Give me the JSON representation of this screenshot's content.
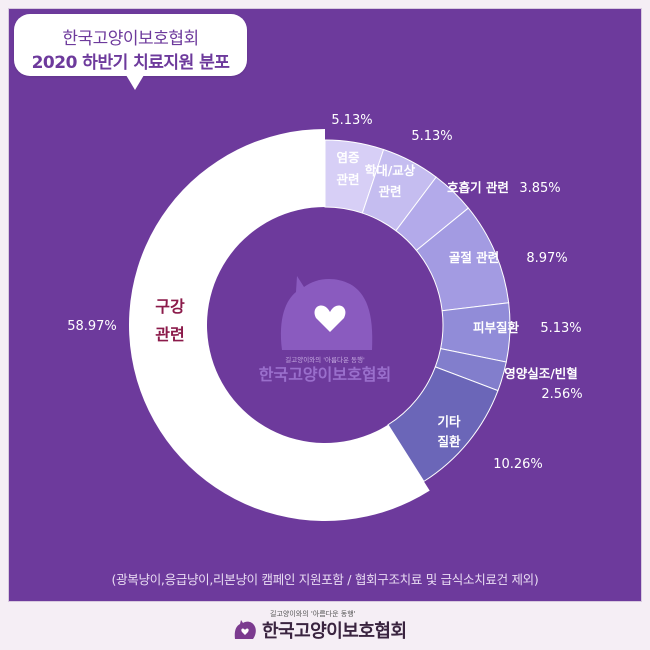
{
  "title": {
    "line1": "한국고양이보호협회",
    "line2": "2020 하반기 치료지원 분포"
  },
  "footnote": "(광복냥이,응급냥이,리본냥이 캠페인 지원포함 / 협회구조치료 및 급식소치료건 제외)",
  "center_logo": {
    "tagline": "길고양이와의 '아름다운 동행'",
    "name": "한국고양이보호협회"
  },
  "footer": {
    "tagline": "길고양이와의 '아름다운 동행'",
    "name": "한국고양이보호협회"
  },
  "colors": {
    "panel": "#6d3a9c",
    "page_bg": "#f5eef5",
    "largest_label": "#8b1a4a"
  },
  "chart_data": {
    "type": "pie",
    "donut": true,
    "slices": [
      {
        "label": "구강 관련",
        "value": 58.97,
        "value_label": "58.97%",
        "color": "#ffffff"
      },
      {
        "label": "염증 관련",
        "value": 5.13,
        "value_label": "5.13%",
        "color": "#d7cff6"
      },
      {
        "label": "학대/교상 관련",
        "value": 5.13,
        "value_label": "5.13%",
        "color": "#c5bdf0"
      },
      {
        "label": "호흡기 관련",
        "value": 3.85,
        "value_label": "3.85%",
        "color": "#b3aaea"
      },
      {
        "label": "골절 관련",
        "value": 8.97,
        "value_label": "8.97%",
        "color": "#a39be2"
      },
      {
        "label": "피부질환",
        "value": 5.13,
        "value_label": "5.13%",
        "color": "#918cd8"
      },
      {
        "label": "영양실조/빈혈",
        "value": 2.56,
        "value_label": "2.56%",
        "color": "#827ecc"
      },
      {
        "label": "기타 질환",
        "value": 10.26,
        "value_label": "10.26%",
        "color": "#6b66b8"
      }
    ]
  }
}
